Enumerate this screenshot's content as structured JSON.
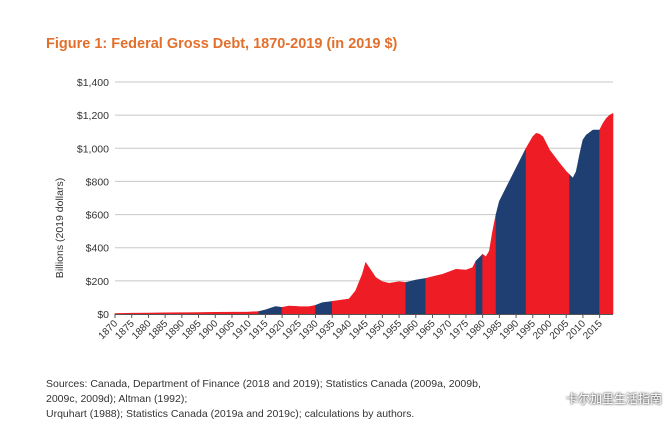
{
  "figure": {
    "title": "Figure 1: Federal Gross Debt, 1870-2019 (in 2019 $)",
    "sources_line1": "Sources: Canada, Department of Finance (2018 and 2019); Statistics Canada (2009a, 2009b, 2009c, 2009d); Altman (1992);",
    "sources_line2": "Urquhart (1988); Statistics Canada (2019a and 2019c); calculations by authors.",
    "watermark": "卡尔加里生活指南"
  },
  "colors": {
    "title": "#e2702c",
    "red": "#ee1c25",
    "blue": "#1f3f73",
    "grid": "#c8c8c8",
    "text": "#333333"
  },
  "chart_data": {
    "type": "area",
    "title": "Figure 1: Federal Gross Debt, 1870-2019 (in 2019 $)",
    "xlabel": "",
    "ylabel": "Billions (2019 dollars)",
    "ylim": [
      0,
      1400
    ],
    "xlim": [
      1870,
      2019
    ],
    "grid": true,
    "y_ticks": [
      0,
      200,
      400,
      600,
      800,
      1000,
      1200,
      1400
    ],
    "y_tick_labels": [
      "$0",
      "$200",
      "$400",
      "$600",
      "$800",
      "$1,000",
      "$1,200",
      "$1,400"
    ],
    "x_ticks": [
      1870,
      1875,
      1880,
      1885,
      1890,
      1895,
      1900,
      1905,
      1910,
      1915,
      1920,
      1925,
      1930,
      1935,
      1940,
      1945,
      1950,
      1955,
      1960,
      1965,
      1970,
      1975,
      1980,
      1985,
      1990,
      1995,
      2000,
      2005,
      2010,
      2015
    ],
    "x": [
      1870,
      1875,
      1880,
      1885,
      1890,
      1895,
      1900,
      1905,
      1910,
      1913,
      1915,
      1918,
      1920,
      1922,
      1925,
      1928,
      1930,
      1932,
      1935,
      1938,
      1940,
      1942,
      1944,
      1945,
      1946,
      1948,
      1950,
      1952,
      1955,
      1957,
      1960,
      1963,
      1965,
      1968,
      1970,
      1972,
      1975,
      1977,
      1978,
      1980,
      1981,
      1982,
      1983,
      1984,
      1985,
      1987,
      1990,
      1993,
      1995,
      1996,
      1997,
      1998,
      2000,
      2003,
      2005,
      2006,
      2007,
      2008,
      2009,
      2010,
      2011,
      2013,
      2015,
      2016,
      2017,
      2018,
      2019
    ],
    "values": [
      3,
      5,
      6,
      7,
      8,
      9,
      10,
      11,
      12,
      15,
      25,
      45,
      40,
      48,
      45,
      44,
      52,
      68,
      76,
      85,
      90,
      140,
      240,
      310,
      280,
      220,
      195,
      185,
      195,
      190,
      205,
      215,
      225,
      240,
      255,
      270,
      265,
      280,
      320,
      360,
      345,
      380,
      500,
      600,
      680,
      760,
      880,
      1000,
      1070,
      1090,
      1085,
      1070,
      990,
      910,
      860,
      840,
      820,
      860,
      960,
      1050,
      1080,
      1110,
      1110,
      1150,
      1180,
      1200,
      1210
    ],
    "segments": [
      {
        "start": 1870,
        "end": 1913,
        "color": "red"
      },
      {
        "start": 1913,
        "end": 1920,
        "color": "blue"
      },
      {
        "start": 1920,
        "end": 1930,
        "color": "red"
      },
      {
        "start": 1930,
        "end": 1935,
        "color": "blue"
      },
      {
        "start": 1935,
        "end": 1957,
        "color": "red"
      },
      {
        "start": 1957,
        "end": 1963,
        "color": "blue"
      },
      {
        "start": 1963,
        "end": 1978,
        "color": "red"
      },
      {
        "start": 1978,
        "end": 1980,
        "color": "blue"
      },
      {
        "start": 1980,
        "end": 1984,
        "color": "red"
      },
      {
        "start": 1984,
        "end": 1993,
        "color": "blue"
      },
      {
        "start": 1993,
        "end": 2006,
        "color": "red"
      },
      {
        "start": 2006,
        "end": 2015,
        "color": "blue"
      },
      {
        "start": 2015,
        "end": 2019,
        "color": "red"
      }
    ]
  }
}
